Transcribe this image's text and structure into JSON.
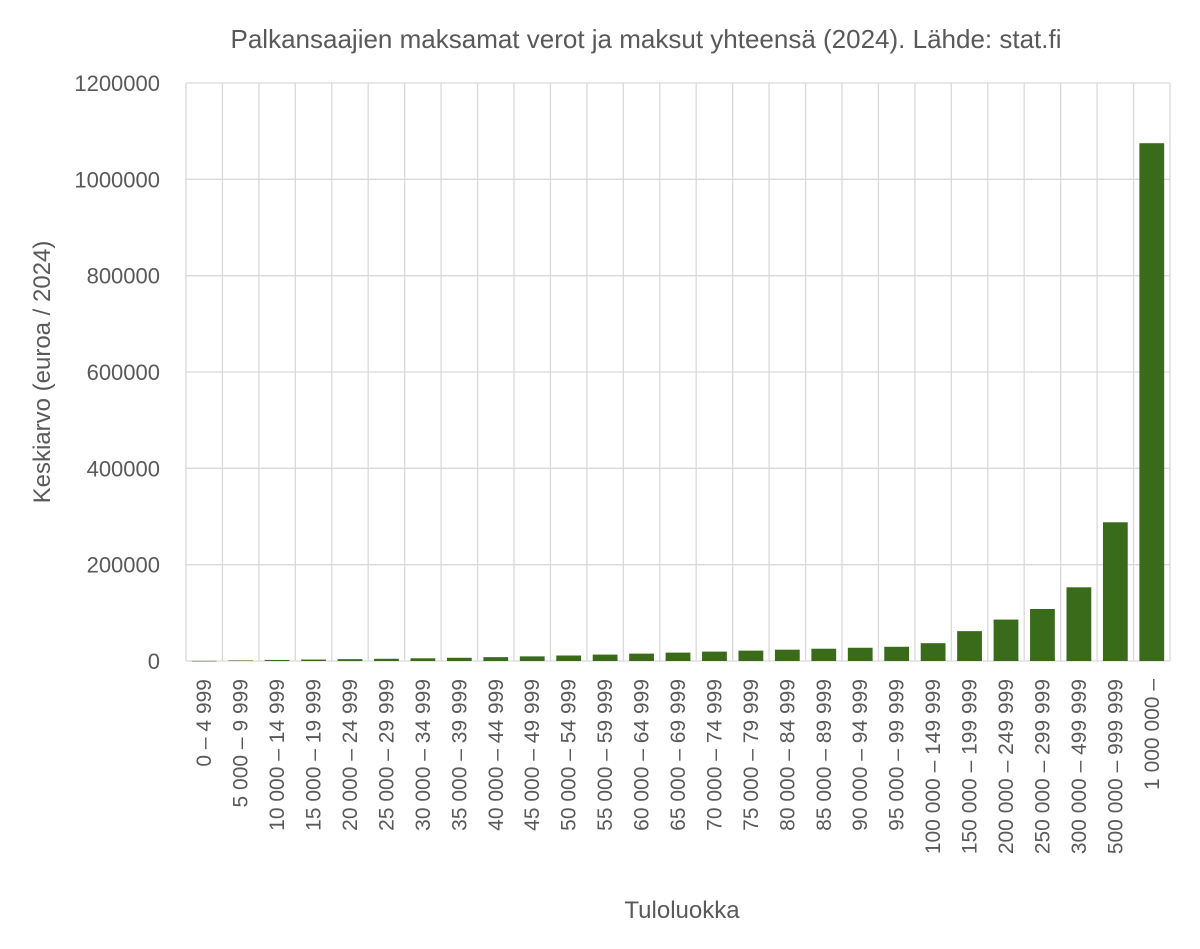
{
  "chart_data": {
    "type": "bar",
    "title": "Palkansaajien maksamat verot ja maksut yhteensä (2024). Lähde: stat.fi",
    "xlabel": "Tuloluokka",
    "ylabel": "Keskiarvo (euroa / 2024)",
    "ylim": [
      0,
      1200000
    ],
    "yticks": [
      "0",
      "200000",
      "400000",
      "600000",
      "800000",
      "1000000",
      "1200000"
    ],
    "ytick_values": [
      0,
      200000,
      400000,
      600000,
      800000,
      1000000,
      1200000
    ],
    "grid": true,
    "categories": [
      "0 – 4 999",
      "5 000 – 9 999",
      "10 000 – 14 999",
      "15 000 – 19 999",
      "20 000 – 24 999",
      "25 000 – 29 999",
      "30 000 – 34 999",
      "35 000 – 39 999",
      "40 000 – 44 999",
      "45 000 – 49 999",
      "50 000 – 54 999",
      "55 000 – 59 999",
      "60 000 – 64 999",
      "65 000 – 69 999",
      "70 000 – 74 999",
      "75 000 – 79 999",
      "80 000 – 84 999",
      "85 000 – 89 999",
      "90 000 – 94 999",
      "95 000 – 99 999",
      "100 000 – 149 999",
      "150 000 – 199 999",
      "200 000 – 249 999",
      "250 000 – 299 999",
      "300 000 – 499 999",
      "500 000 – 999 999",
      "1 000 000 –"
    ],
    "values": [
      300,
      1100,
      2200,
      3000,
      3800,
      4600,
      5600,
      6700,
      8000,
      9600,
      11400,
      13300,
      15300,
      17400,
      19500,
      21500,
      23500,
      25500,
      27500,
      29500,
      37000,
      62000,
      86000,
      108000,
      153000,
      288000,
      1075000
    ],
    "bar_color": "#3a6b1a"
  }
}
